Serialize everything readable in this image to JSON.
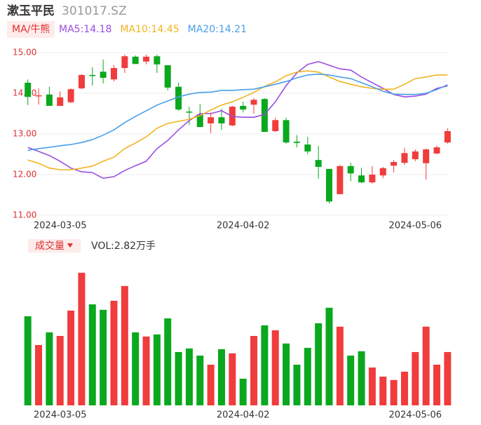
{
  "chart_data": [
    {
      "type": "candlestick",
      "title": "漱玉平民",
      "subtitle": "301017.SZ",
      "legend_title": "MA/牛熊",
      "categories": [
        null,
        null,
        null,
        "2024-03-05",
        null,
        null,
        null,
        null,
        null,
        null,
        null,
        null,
        null,
        null,
        null,
        null,
        null,
        null,
        null,
        null,
        "2024-04-02",
        null,
        null,
        null,
        null,
        null,
        null,
        null,
        null,
        null,
        null,
        null,
        null,
        null,
        null,
        null,
        "2024-05-06",
        null,
        null,
        null
      ],
      "open": [
        14.26,
        13.93,
        13.97,
        13.69,
        13.78,
        14.12,
        14.45,
        14.53,
        14.34,
        14.62,
        14.9,
        14.78,
        14.91,
        14.69,
        14.16,
        13.55,
        13.48,
        13.26,
        13.41,
        13.21,
        13.69,
        13.72,
        13.86,
        13.07,
        13.34,
        12.81,
        12.74,
        12.36,
        12.14,
        11.52,
        12.21,
        11.98,
        11.81,
        11.98,
        12.22,
        12.29,
        12.38,
        12.28,
        12.52,
        12.79
      ],
      "close": [
        13.91,
        13.95,
        13.69,
        13.9,
        14.1,
        14.45,
        14.43,
        14.38,
        14.62,
        14.91,
        14.72,
        14.9,
        14.71,
        14.14,
        13.6,
        13.53,
        13.17,
        13.41,
        13.26,
        13.67,
        13.6,
        13.84,
        13.05,
        13.34,
        12.79,
        12.78,
        12.57,
        12.19,
        11.34,
        12.21,
        12.03,
        11.81,
        12.0,
        12.16,
        12.31,
        12.53,
        12.57,
        12.62,
        12.67,
        13.07
      ],
      "high": [
        14.34,
        14.12,
        14.16,
        14.05,
        14.12,
        14.47,
        14.64,
        14.83,
        14.69,
        14.95,
        14.93,
        14.95,
        14.95,
        14.69,
        14.26,
        13.67,
        13.74,
        13.53,
        13.62,
        13.69,
        13.79,
        13.88,
        13.88,
        13.4,
        13.4,
        12.97,
        12.93,
        12.71,
        12.14,
        12.24,
        12.29,
        12.17,
        12.21,
        12.19,
        12.36,
        12.66,
        12.62,
        12.64,
        12.71,
        13.14
      ],
      "low": [
        13.71,
        13.72,
        13.69,
        13.69,
        13.76,
        14.1,
        14.19,
        14.24,
        14.29,
        14.5,
        14.72,
        14.71,
        14.5,
        14.07,
        13.57,
        13.22,
        13.17,
        13.02,
        13.1,
        13.19,
        13.53,
        13.5,
        13.05,
        13.05,
        12.76,
        12.67,
        12.5,
        11.9,
        11.29,
        11.52,
        11.84,
        11.79,
        11.78,
        11.91,
        12.05,
        12.24,
        12.33,
        11.88,
        12.5,
        12.76
      ],
      "series": [
        {
          "name": "MA5:14.18",
          "color": "#9b4de0",
          "values": [
            12.67,
            12.57,
            12.47,
            12.33,
            12.16,
            12.07,
            12.05,
            11.91,
            11.95,
            12.1,
            12.22,
            12.33,
            12.64,
            12.84,
            13.1,
            13.33,
            13.5,
            13.5,
            13.57,
            13.43,
            13.41,
            13.41,
            13.48,
            13.79,
            14.19,
            14.5,
            14.71,
            14.78,
            14.69,
            14.6,
            14.57,
            14.4,
            14.26,
            14.12,
            13.97,
            13.91,
            13.93,
            13.98,
            14.12,
            14.18
          ]
        },
        {
          "name": "MA10:14.45",
          "color": "#f0b41e",
          "values": [
            12.36,
            12.28,
            12.16,
            12.12,
            12.12,
            12.16,
            12.21,
            12.33,
            12.43,
            12.64,
            12.78,
            12.93,
            13.14,
            13.26,
            13.31,
            13.36,
            13.45,
            13.59,
            13.71,
            13.79,
            13.9,
            14.02,
            14.17,
            14.28,
            14.43,
            14.52,
            14.55,
            14.52,
            14.4,
            14.29,
            14.22,
            14.16,
            14.12,
            14.1,
            14.1,
            14.22,
            14.36,
            14.4,
            14.45,
            14.45
          ]
        },
        {
          "name": "MA20:14.21",
          "color": "#4a9fe8",
          "values": [
            12.6,
            12.64,
            12.67,
            12.71,
            12.74,
            12.79,
            12.86,
            12.97,
            13.1,
            13.28,
            13.43,
            13.57,
            13.71,
            13.81,
            13.91,
            13.98,
            14.02,
            14.03,
            14.07,
            14.07,
            14.09,
            14.1,
            14.16,
            14.22,
            14.29,
            14.38,
            14.45,
            14.47,
            14.45,
            14.4,
            14.36,
            14.26,
            14.16,
            14.05,
            13.98,
            13.97,
            13.97,
            14.0,
            14.09,
            14.21
          ]
        }
      ],
      "ylim": [
        11,
        15
      ],
      "yticks": [
        {
          "value": 15,
          "label": "15.00"
        },
        {
          "value": 14,
          "label": "14.00"
        },
        {
          "value": 13,
          "label": "13.00"
        },
        {
          "value": 12,
          "label": "12.00"
        },
        {
          "value": 11,
          "label": "11.00"
        }
      ],
      "up_color": "#f03c3c",
      "down_color": "#0aa81e",
      "grid": true
    },
    {
      "type": "bar",
      "title": "成交量",
      "subtitle": "VOL:2.82万手",
      "categories": [
        null,
        null,
        null,
        "2024-03-05",
        null,
        null,
        null,
        null,
        null,
        null,
        null,
        null,
        null,
        null,
        null,
        null,
        null,
        null,
        null,
        null,
        "2024-04-02",
        null,
        null,
        null,
        null,
        null,
        null,
        null,
        null,
        null,
        null,
        null,
        null,
        null,
        null,
        null,
        "2024-05-06",
        null,
        null,
        null
      ],
      "values": [
        4.71,
        3.19,
        3.86,
        3.67,
        5.01,
        7.01,
        5.34,
        5.05,
        5.53,
        6.31,
        3.86,
        3.64,
        3.75,
        4.6,
        2.82,
        3.01,
        2.63,
        2.15,
        2.97,
        2.75,
        1.41,
        3.67,
        4.23,
        3.97,
        3.27,
        2.15,
        3.04,
        4.34,
        5.16,
        4.16,
        2.63,
        2.86,
        2.0,
        1.52,
        1.34,
        1.78,
        2.82,
        4.16,
        2.15,
        2.82
      ],
      "ylim": [
        0,
        7.6
      ]
    }
  ]
}
